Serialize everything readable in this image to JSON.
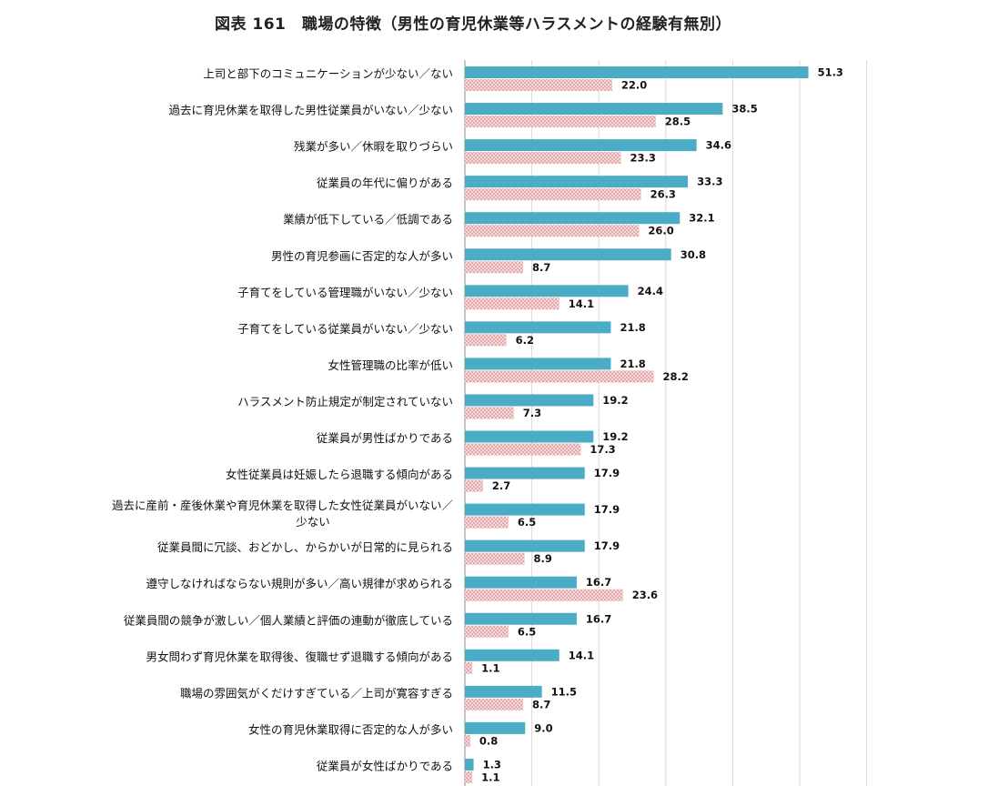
{
  "chart_data": {
    "type": "bar",
    "orientation": "horizontal",
    "title": "図表 161　職場の特徴（男性の育児休業等ハラスメントの経験有無別）",
    "categories": [
      "上司と部下のコミュニケーションが少ない／ない",
      "過去に育児休業を取得した男性従業員がいない／少ない",
      "残業が多い／休暇を取りづらい",
      "従業員の年代に偏りがある",
      "業績が低下している／低調である",
      "男性の育児参画に否定的な人が多い",
      "子育てをしている管理職がいない／少ない",
      "子育てをしている従業員がいない／少ない",
      "女性管理職の比率が低い",
      "ハラスメント防止規定が制定されていない",
      "従業員が男性ばかりである",
      "女性従業員は妊娠したら退職する傾向がある",
      "過去に産前・産後休業や育児休業を取得した女性従業員がいない／少ない",
      "従業員間に冗談、おどかし、からかいが日常的に見られる",
      "遵守しなければならない規則が多い／高い規律が求められる",
      "従業員間の競争が激しい／個人業績と評価の連動が徹底している",
      "男女問わず育児休業を取得後、復職せず退職する傾向がある",
      "職場の雰囲気がくだけすぎている／上司が寛容すぎる",
      "女性の育児休業取得に否定的な人が多い",
      "従業員が女性ばかりである"
    ],
    "series": [
      {
        "color": "#4BACC6",
        "pattern": "solid",
        "values": [
          51.3,
          38.5,
          34.6,
          33.3,
          32.1,
          30.8,
          24.4,
          21.8,
          21.8,
          19.2,
          19.2,
          17.9,
          17.9,
          17.9,
          16.7,
          16.7,
          14.1,
          11.5,
          9.0,
          1.3
        ]
      },
      {
        "color": "#E6A8A8",
        "pattern": "dotted",
        "values": [
          22.0,
          28.5,
          23.3,
          26.3,
          26.0,
          8.7,
          14.1,
          6.2,
          28.2,
          7.3,
          17.3,
          2.7,
          6.5,
          8.9,
          23.6,
          6.5,
          1.1,
          8.7,
          0.8,
          1.1
        ]
      }
    ],
    "xlim": [
      0,
      60
    ],
    "grid": true,
    "gridline_step": 10,
    "xlabel": "",
    "ylabel": ""
  }
}
